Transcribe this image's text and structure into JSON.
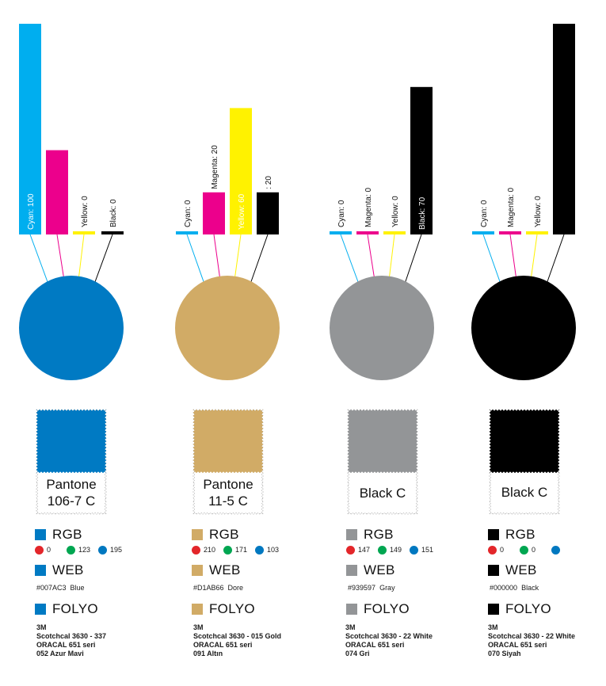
{
  "palette": {
    "cyan": "#00aeef",
    "magenta": "#ec008c",
    "yellow": "#fff200",
    "black": "#000000",
    "dot_red": "#e3262a",
    "dot_green": "#00a651",
    "dot_blue": "#0078c0"
  },
  "chart_data": [
    {
      "type": "bar",
      "categories": [
        "Cyan",
        "Magenta",
        "Yellow",
        "Black"
      ],
      "values": [
        100,
        40,
        0,
        0
      ],
      "labels": [
        "Cyan: 100",
        "",
        "Yellow: 0",
        "Black: 0"
      ],
      "ylim": [
        0,
        100
      ],
      "result_color": "#007ac3"
    },
    {
      "type": "bar",
      "categories": [
        "Cyan",
        "Magenta",
        "Yellow",
        "Black"
      ],
      "values": [
        0,
        20,
        60,
        20
      ],
      "labels": [
        "Cyan: 0",
        "Magenta: 20",
        "Yellow: 60",
        ": 20"
      ],
      "ylim": [
        0,
        100
      ],
      "result_color": "#d1ab66"
    },
    {
      "type": "bar",
      "categories": [
        "Cyan",
        "Magenta",
        "Yellow",
        "Black"
      ],
      "values": [
        0,
        0,
        0,
        70
      ],
      "labels": [
        "Cyan: 0",
        "Magenta: 0",
        "Yellow: 0",
        "Black: 70"
      ],
      "ylim": [
        0,
        100
      ],
      "result_color": "#939597"
    },
    {
      "type": "bar",
      "categories": [
        "Cyan",
        "Magenta",
        "Yellow",
        "Black"
      ],
      "values": [
        0,
        0,
        0,
        100
      ],
      "labels": [
        "Cyan: 0",
        "Magenta: 0",
        "Yellow: 0",
        ""
      ],
      "ylim": [
        0,
        100
      ],
      "result_color": "#000000"
    }
  ],
  "cards": [
    {
      "color": "#007ac3",
      "pantone_lines": [
        "Pantone",
        "106-7 C"
      ],
      "rgb_label": "RGB",
      "rgb": [
        "0",
        "123",
        "195"
      ],
      "web_label": "WEB",
      "web_hex": "#007AC3",
      "web_name": "Blue",
      "folyo_label": "FOLYO",
      "folyo": [
        "3M",
        "Scotchcal 3630 - 337",
        "ORACAL 651 seri",
        "052 Azur Mavi"
      ]
    },
    {
      "color": "#d1ab66",
      "pantone_lines": [
        "Pantone",
        "11-5 C"
      ],
      "rgb_label": "RGB",
      "rgb": [
        "210",
        "171",
        "103"
      ],
      "web_label": "WEB",
      "web_hex": "#D1AB66",
      "web_name": "Dore",
      "folyo_label": "FOLYO",
      "folyo": [
        "3M",
        "Scotchcal 3630 - 015 Gold",
        "ORACAL 651 seri",
        "091 Altın"
      ]
    },
    {
      "color": "#939597",
      "pantone_lines": [
        "Black C"
      ],
      "rgb_label": "RGB",
      "rgb": [
        "147",
        "149",
        "151"
      ],
      "web_label": "WEB",
      "web_hex": "#939597",
      "web_name": "Gray",
      "folyo_label": "FOLYO",
      "folyo": [
        "3M",
        "Scotchcal 3630 - 22 White",
        "ORACAL 651 seri",
        "074 Gri"
      ]
    },
    {
      "color": "#000000",
      "pantone_lines": [
        "Black C"
      ],
      "rgb_label": "RGB",
      "rgb": [
        "0",
        "0",
        ""
      ],
      "web_label": "WEB",
      "web_hex": "#000000",
      "web_name": "Black",
      "folyo_label": "FOLYO",
      "folyo": [
        "3M",
        "Scotchcal 3630 - 22 White",
        "ORACAL 651 seri",
        "070 Siyah"
      ]
    }
  ]
}
